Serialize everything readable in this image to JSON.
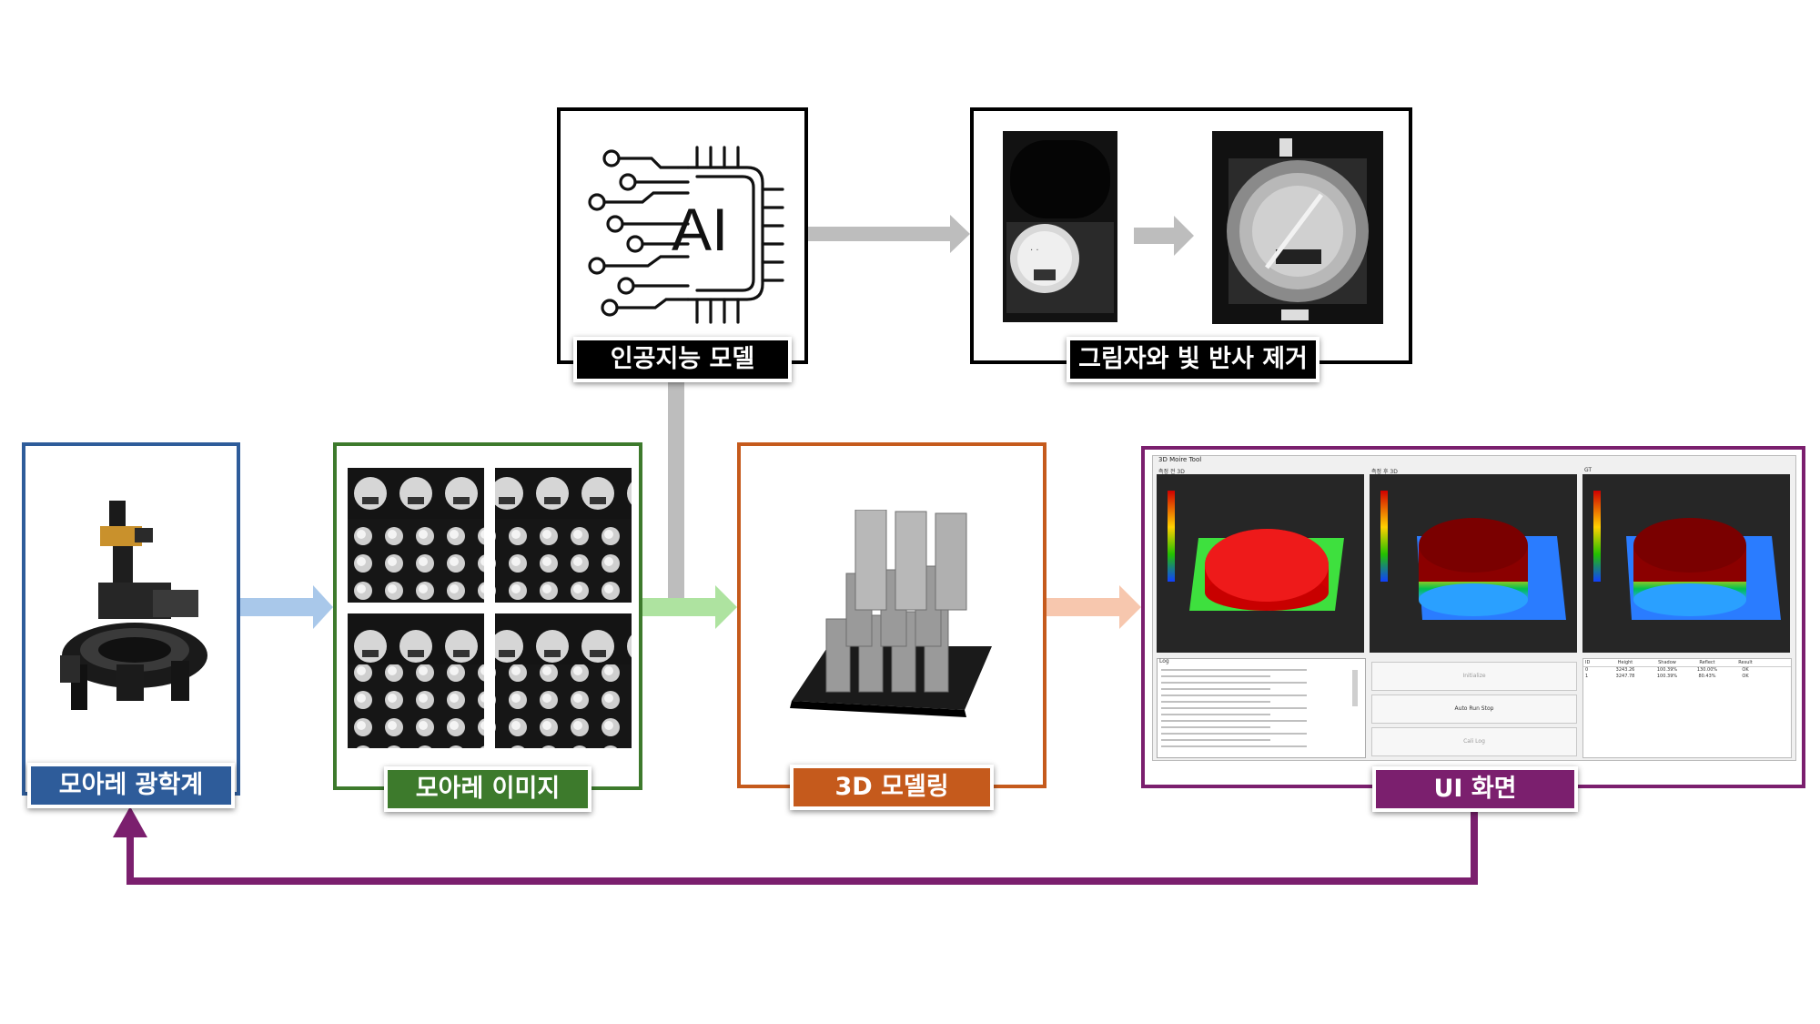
{
  "colors": {
    "optics": "#2e5c9a",
    "moire": "#3d7a2c",
    "modeling": "#c55a1c",
    "ui": "#7b1f6e",
    "ai": "#000000",
    "arrow_blue": "#a9c8ea",
    "arrow_green": "#aee3a0",
    "arrow_orange": "#f7c7ae",
    "arrow_gray": "#bdbdbd"
  },
  "labels": {
    "ai_model": "인공지능 모델",
    "shadow_removal": "그림자와 빛 반사 제거",
    "moire_optics": "모아레 광학계",
    "moire_image": "모아레 이미지",
    "modeling_3d": "3D 모델링",
    "ui_screen": "UI 화면"
  },
  "ai_icon_text": "AI",
  "ui_window": {
    "title": "3D Moire Tool",
    "panel_titles": [
      "측정 전 3D",
      "측정 후 3D",
      "GT"
    ],
    "log_title": "Log",
    "buttons": [
      "Initialize",
      "Auto Run Stop",
      "Cali Log"
    ],
    "table_headers": [
      "ID",
      "Height",
      "Shadow",
      "Reflect",
      "Result"
    ],
    "table_rows": [
      [
        "0",
        "3243.26",
        "100.39%",
        "130.00%",
        "OK"
      ],
      [
        "1",
        "3247.78",
        "100.39%",
        "80.43%",
        "OK"
      ]
    ]
  },
  "icons": [
    "robot-arm-icon",
    "ai-chip-icon"
  ]
}
